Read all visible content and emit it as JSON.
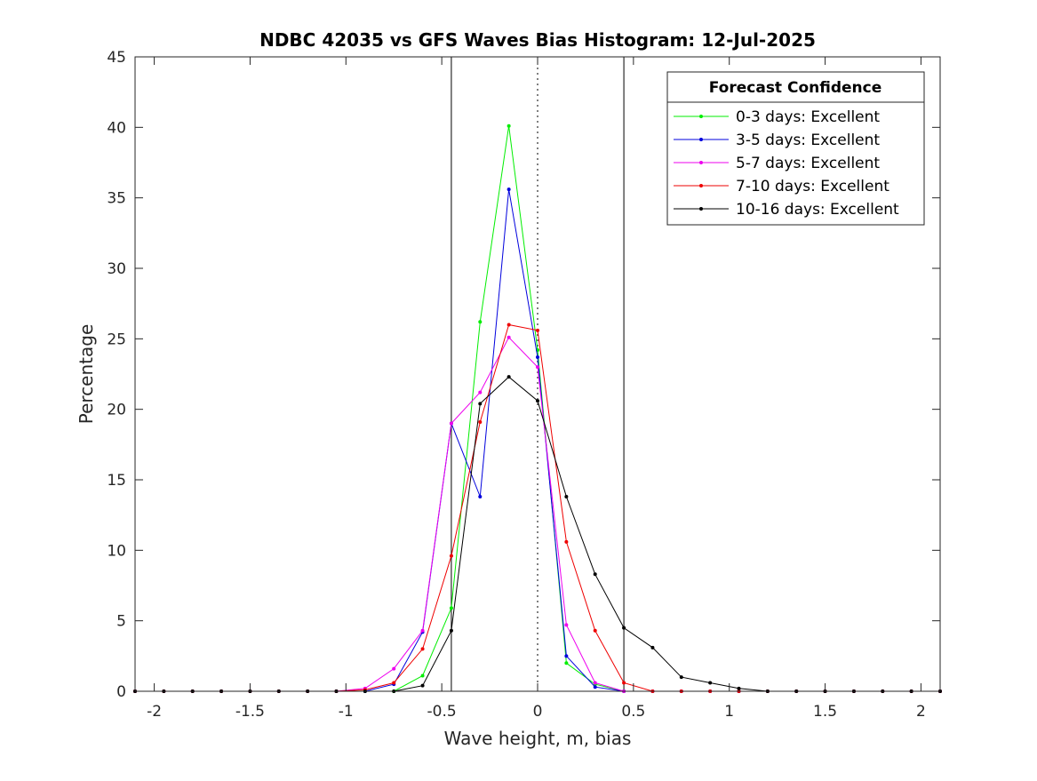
{
  "chart_data": {
    "type": "line",
    "title": "NDBC 42035 vs GFS Waves Bias Histogram: 12-Jul-2025",
    "xlabel": "Wave height, m, bias",
    "ylabel": "Percentage",
    "xlim": [
      -2.1,
      2.1
    ],
    "ylim": [
      0,
      45
    ],
    "xticks": [
      -2,
      -1.5,
      -1,
      -0.5,
      0,
      0.5,
      1,
      1.5,
      2
    ],
    "xtick_labels": [
      "-2",
      "-1.5",
      "-1",
      "-0.5",
      "0",
      "0.5",
      "1",
      "1.5",
      "2"
    ],
    "yticks": [
      0,
      5,
      10,
      15,
      20,
      25,
      30,
      35,
      40,
      45
    ],
    "ytick_labels": [
      "0",
      "5",
      "10",
      "15",
      "20",
      "25",
      "30",
      "35",
      "40",
      "45"
    ],
    "grid": false,
    "reference_lines": [
      {
        "x": -0.45,
        "style": "solid"
      },
      {
        "x": 0,
        "style": "dotted"
      },
      {
        "x": 0.45,
        "style": "solid"
      }
    ],
    "legend": {
      "title": "Forecast Confidence",
      "placement": "top-right"
    },
    "x": [
      -2.1,
      -1.95,
      -1.8,
      -1.65,
      -1.5,
      -1.35,
      -1.2,
      -1.05,
      -0.9,
      -0.75,
      -0.6,
      -0.45,
      -0.3,
      -0.15,
      0,
      0.15,
      0.3,
      0.45,
      0.6,
      0.75,
      0.9,
      1.05,
      1.2,
      1.35,
      1.5,
      1.65,
      1.8,
      1.95,
      2.1
    ],
    "series": [
      {
        "name": "0-3 days: Excellent",
        "color": "#00ee00",
        "values": [
          0,
          0,
          0,
          0,
          0,
          0,
          0,
          0,
          0,
          0,
          1.1,
          5.9,
          26.2,
          40.1,
          24.2,
          2.0,
          0.5,
          0,
          0,
          0,
          0,
          0,
          0,
          0,
          0,
          0,
          0,
          0,
          0
        ]
      },
      {
        "name": "3-5 days: Excellent",
        "color": "#0000dd",
        "values": [
          0,
          0,
          0,
          0,
          0,
          0,
          0,
          0,
          0,
          0.5,
          4.2,
          19.0,
          13.8,
          35.6,
          23.7,
          2.5,
          0.3,
          0,
          0,
          0,
          0,
          0,
          0,
          0,
          0,
          0,
          0,
          0,
          0
        ]
      },
      {
        "name": "5-7 days: Excellent",
        "color": "#ee00ee",
        "values": [
          0,
          0,
          0,
          0,
          0,
          0,
          0,
          0,
          0.2,
          1.6,
          4.3,
          19.0,
          21.2,
          25.1,
          23.0,
          4.7,
          0.6,
          0,
          0,
          0,
          0,
          0,
          0,
          0,
          0,
          0,
          0,
          0,
          0
        ]
      },
      {
        "name": "7-10 days: Excellent",
        "color": "#ee0000",
        "values": [
          0,
          0,
          0,
          0,
          0,
          0,
          0,
          0,
          0.1,
          0.6,
          3.0,
          9.6,
          19.1,
          26.0,
          25.6,
          10.6,
          4.3,
          0.6,
          0,
          0,
          0,
          0,
          0,
          0,
          0,
          0,
          0,
          0,
          0
        ]
      },
      {
        "name": "10-16 days: Excellent",
        "color": "#000000",
        "values": [
          0,
          0,
          0,
          0,
          0,
          0,
          0,
          0,
          0,
          0,
          0.4,
          4.3,
          20.4,
          22.3,
          20.6,
          13.8,
          8.3,
          4.5,
          3.1,
          1.0,
          0.6,
          0.2,
          0,
          0,
          0,
          0,
          0,
          0,
          0
        ]
      }
    ]
  }
}
